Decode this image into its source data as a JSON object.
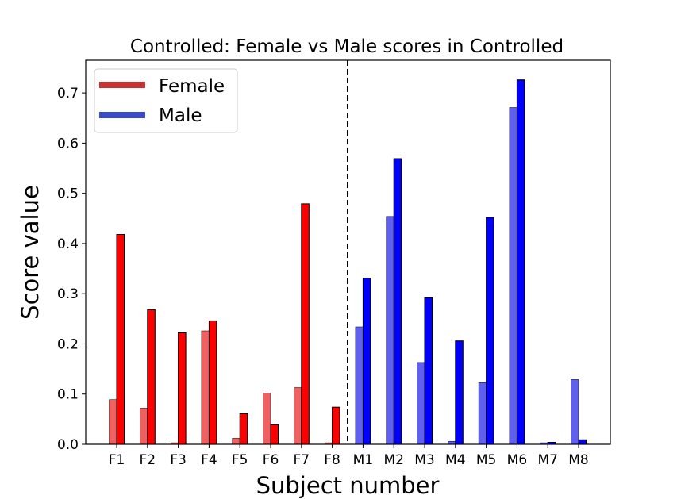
{
  "chart_data": {
    "type": "bar",
    "title": "Controlled: Female vs Male scores in Controlled",
    "xlabel": "Subject number",
    "ylabel": "Score value",
    "ylim": [
      0,
      0.765
    ],
    "yticks": [
      "0.0",
      "0.1",
      "0.2",
      "0.3",
      "0.4",
      "0.5",
      "0.6",
      "0.7"
    ],
    "grid": false,
    "legend_position": "top-left",
    "divider": "dashed vertical line between F8 and M1",
    "legend": [
      {
        "label": "Female",
        "color": "#c83232"
      },
      {
        "label": "Male",
        "color": "#3c4bc8"
      }
    ],
    "categories": [
      "F1",
      "F2",
      "F3",
      "F4",
      "F5",
      "F6",
      "F7",
      "F8",
      "M1",
      "M2",
      "M3",
      "M4",
      "M5",
      "M6",
      "M7",
      "M8"
    ],
    "series": [
      {
        "colors": {
          "female": "#f06060",
          "male": "#6060f0"
        },
        "values": [
          0.089,
          0.072,
          0.003,
          0.226,
          0.012,
          0.102,
          0.113,
          0.003,
          0.234,
          0.454,
          0.163,
          0.006,
          0.123,
          0.671,
          0.003,
          0.129
        ]
      },
      {
        "colors": {
          "female": "#ff0000",
          "male": "#0000ff"
        },
        "values": [
          0.418,
          0.268,
          0.222,
          0.246,
          0.061,
          0.039,
          0.479,
          0.074,
          0.331,
          0.569,
          0.292,
          0.206,
          0.452,
          0.726,
          0.004,
          0.009
        ]
      }
    ]
  }
}
